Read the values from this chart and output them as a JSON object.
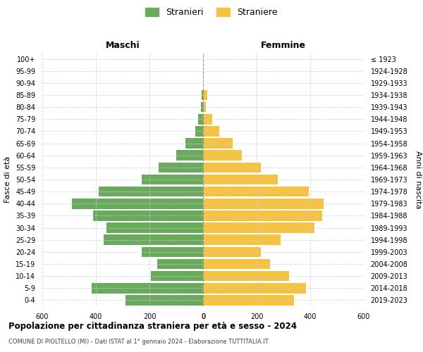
{
  "age_groups": [
    "0-4",
    "5-9",
    "10-14",
    "15-19",
    "20-24",
    "25-29",
    "30-34",
    "35-39",
    "40-44",
    "45-49",
    "50-54",
    "55-59",
    "60-64",
    "65-69",
    "70-74",
    "75-79",
    "80-84",
    "85-89",
    "90-94",
    "95-99",
    "100+"
  ],
  "birth_years": [
    "2019-2023",
    "2014-2018",
    "2009-2013",
    "2004-2008",
    "1999-2003",
    "1994-1998",
    "1989-1993",
    "1984-1988",
    "1979-1983",
    "1974-1978",
    "1969-1973",
    "1964-1968",
    "1959-1963",
    "1954-1958",
    "1949-1953",
    "1944-1948",
    "1939-1943",
    "1934-1938",
    "1929-1933",
    "1924-1928",
    "≤ 1923"
  ],
  "maschi": [
    290,
    415,
    195,
    170,
    230,
    370,
    360,
    410,
    490,
    390,
    230,
    165,
    100,
    65,
    30,
    18,
    8,
    5,
    0,
    0,
    0
  ],
  "femmine": [
    340,
    385,
    320,
    250,
    215,
    290,
    415,
    445,
    450,
    395,
    280,
    215,
    145,
    110,
    60,
    35,
    10,
    15,
    0,
    0,
    0
  ],
  "male_color": "#6aaa5e",
  "female_color": "#f5c242",
  "title": "Popolazione per cittadinanza straniera per età e sesso - 2024",
  "subtitle": "COMUNE DI PIOLTELLO (MI) - Dati ISTAT al 1° gennaio 2024 - Elaborazione TUTTITALIA.IT",
  "legend_male": "Stranieri",
  "legend_female": "Straniere",
  "label_left": "Maschi",
  "label_right": "Femmine",
  "ylabel_left": "Fasce di età",
  "ylabel_right": "Anni di nascita",
  "xlim": 600,
  "bg_color": "#ffffff",
  "grid_color": "#cccccc"
}
